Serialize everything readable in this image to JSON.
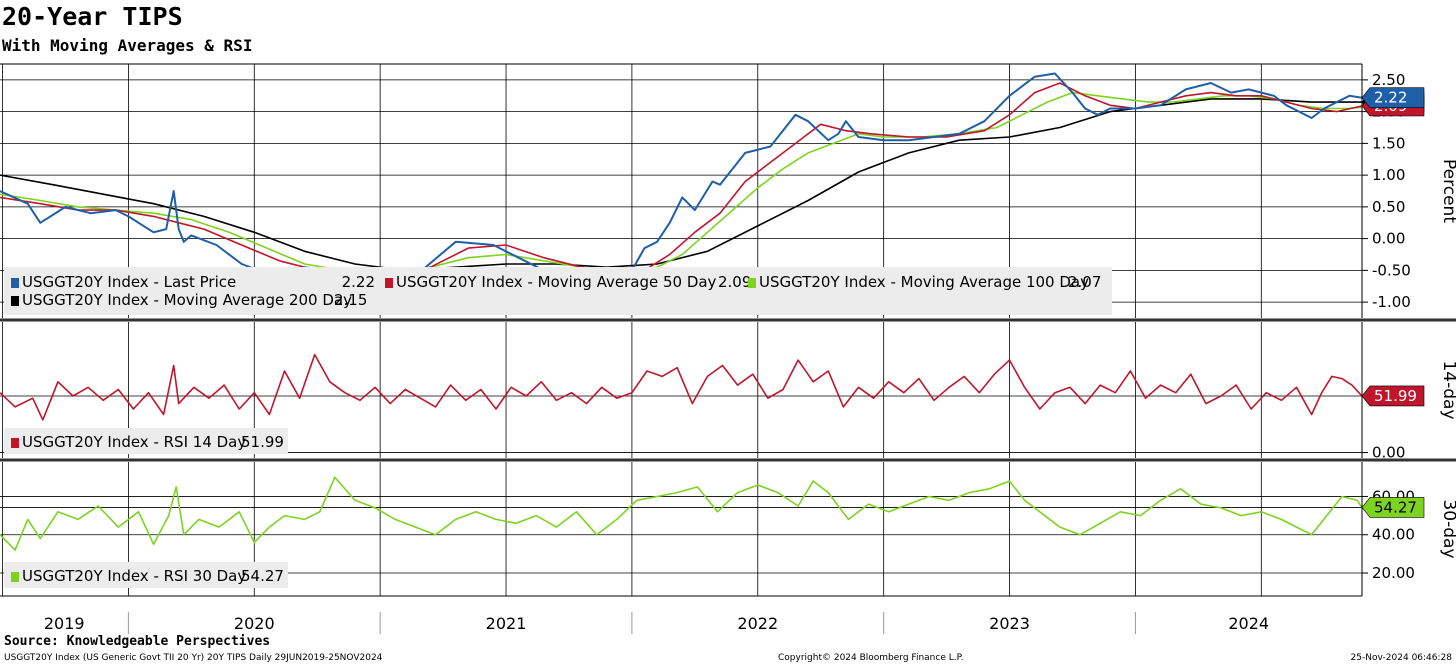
{
  "header": {
    "title": "20-Year TIPS",
    "subtitle": "With Moving Averages & RSI"
  },
  "footer": {
    "source": "Source: Knowledgeable Perspectives",
    "ticker_info": "USGGT20Y Index (US Generic Govt TII 20 Yr) 20Y TIPS  Daily 29JUN2019-25NOV2024",
    "copyright": "Copyright© 2024 Bloomberg Finance L.P.",
    "timestamp": "25-Nov-2024 06:46:28"
  },
  "colors": {
    "price": "#1f5fa8",
    "ma50": "#c0162c",
    "ma100": "#7ed321",
    "ma200": "#000000",
    "rsi14": "#c0162c",
    "rsi30": "#7ed321",
    "grid": "#000000"
  },
  "chart_data": [
    {
      "type": "line",
      "panel": "price",
      "ylabel": "Percent",
      "ylim": [
        -1.25,
        2.75
      ],
      "yticks": [
        "2.50",
        "2.00",
        "1.50",
        "1.00",
        "0.50",
        "0.00",
        "-0.50",
        "-1.00"
      ],
      "ytick_values": [
        2.5,
        2.0,
        1.5,
        1.0,
        0.5,
        0.0,
        -0.5,
        -1.0
      ],
      "x_labels": [
        "2019",
        "2020",
        "2021",
        "2022",
        "2023",
        "2024"
      ],
      "x_range": [
        2019.49,
        2024.9
      ],
      "grid": true,
      "legend_placement": "bottom-left",
      "series": [
        {
          "name": "USGGT20Y Index - Last Price",
          "legend_value": "2.22",
          "last_label": "2.22",
          "x": [
            2019.49,
            2019.6,
            2019.65,
            2019.75,
            2019.85,
            2019.95,
            2020.0,
            2020.1,
            2020.15,
            2020.18,
            2020.2,
            2020.22,
            2020.25,
            2020.35,
            2020.45,
            2020.55,
            2020.65,
            2020.7,
            2020.8,
            2020.9,
            2021.0,
            2021.1,
            2021.15,
            2021.3,
            2021.45,
            2021.55,
            2021.65,
            2021.75,
            2021.85,
            2021.95,
            2022.0,
            2022.05,
            2022.1,
            2022.15,
            2022.2,
            2022.25,
            2022.32,
            2022.35,
            2022.45,
            2022.55,
            2022.65,
            2022.7,
            2022.78,
            2022.82,
            2022.85,
            2022.9,
            2023.0,
            2023.1,
            2023.2,
            2023.3,
            2023.4,
            2023.5,
            2023.6,
            2023.68,
            2023.75,
            2023.8,
            2023.85,
            2023.9,
            2024.0,
            2024.1,
            2024.2,
            2024.3,
            2024.38,
            2024.45,
            2024.55,
            2024.6,
            2024.65,
            2024.7,
            2024.75,
            2024.8,
            2024.85,
            2024.9
          ],
          "values": [
            0.75,
            0.55,
            0.25,
            0.5,
            0.4,
            0.45,
            0.35,
            0.1,
            0.15,
            0.75,
            0.15,
            -0.05,
            0.05,
            -0.1,
            -0.4,
            -0.55,
            -0.6,
            -0.45,
            -0.5,
            -0.55,
            -0.55,
            -0.5,
            -0.55,
            -0.05,
            -0.1,
            -0.3,
            -0.5,
            -0.55,
            -0.6,
            -0.7,
            -0.5,
            -0.15,
            -0.05,
            0.25,
            0.65,
            0.45,
            0.9,
            0.85,
            1.35,
            1.45,
            1.95,
            1.85,
            1.55,
            1.65,
            1.85,
            1.6,
            1.55,
            1.55,
            1.6,
            1.65,
            1.85,
            2.25,
            2.55,
            2.6,
            2.3,
            2.05,
            1.95,
            2.05,
            2.05,
            2.1,
            2.35,
            2.45,
            2.3,
            2.35,
            2.25,
            2.1,
            2.0,
            1.9,
            2.05,
            2.15,
            2.25,
            2.22
          ]
        },
        {
          "name": "USGGT20Y Index - Moving Average 50 Day",
          "legend_value": "2.09",
          "last_label": "2.09",
          "x": [
            2019.49,
            2019.65,
            2019.8,
            2019.95,
            2020.1,
            2020.2,
            2020.3,
            2020.45,
            2020.6,
            2020.75,
            2020.9,
            2021.05,
            2021.2,
            2021.35,
            2021.5,
            2021.65,
            2021.8,
            2021.95,
            2022.05,
            2022.15,
            2022.25,
            2022.35,
            2022.45,
            2022.55,
            2022.65,
            2022.75,
            2022.85,
            2022.95,
            2023.1,
            2023.25,
            2023.4,
            2023.5,
            2023.6,
            2023.7,
            2023.8,
            2023.9,
            2024.0,
            2024.1,
            2024.2,
            2024.3,
            2024.4,
            2024.5,
            2024.6,
            2024.7,
            2024.8,
            2024.9
          ],
          "values": [
            0.65,
            0.55,
            0.45,
            0.45,
            0.35,
            0.25,
            0.15,
            -0.1,
            -0.35,
            -0.5,
            -0.55,
            -0.55,
            -0.45,
            -0.15,
            -0.1,
            -0.3,
            -0.45,
            -0.55,
            -0.5,
            -0.25,
            0.1,
            0.4,
            0.9,
            1.2,
            1.5,
            1.8,
            1.7,
            1.65,
            1.6,
            1.6,
            1.7,
            1.95,
            2.3,
            2.45,
            2.25,
            2.1,
            2.05,
            2.15,
            2.25,
            2.3,
            2.25,
            2.25,
            2.15,
            2.05,
            2.0,
            2.09
          ]
        },
        {
          "name": "USGGT20Y Index - Moving Average 100 Day",
          "legend_value": "2.07",
          "last_label": "2.07",
          "x": [
            2019.49,
            2019.65,
            2019.8,
            2019.95,
            2020.1,
            2020.25,
            2020.4,
            2020.55,
            2020.7,
            2020.85,
            2021.0,
            2021.2,
            2021.35,
            2021.5,
            2021.65,
            2021.8,
            2021.95,
            2022.1,
            2022.2,
            2022.3,
            2022.4,
            2022.5,
            2022.6,
            2022.7,
            2022.8,
            2022.9,
            2023.0,
            2023.15,
            2023.3,
            2023.45,
            2023.55,
            2023.65,
            2023.75,
            2023.85,
            2023.95,
            2024.05,
            2024.15,
            2024.25,
            2024.35,
            2024.45,
            2024.55,
            2024.65,
            2024.75,
            2024.85,
            2024.9
          ],
          "values": [
            0.7,
            0.6,
            0.5,
            0.45,
            0.4,
            0.3,
            0.1,
            -0.15,
            -0.4,
            -0.5,
            -0.55,
            -0.45,
            -0.3,
            -0.25,
            -0.35,
            -0.45,
            -0.55,
            -0.45,
            -0.25,
            0.1,
            0.45,
            0.8,
            1.1,
            1.35,
            1.5,
            1.65,
            1.6,
            1.6,
            1.65,
            1.75,
            1.95,
            2.15,
            2.3,
            2.25,
            2.2,
            2.15,
            2.15,
            2.2,
            2.25,
            2.25,
            2.2,
            2.1,
            2.05,
            2.05,
            2.07
          ]
        },
        {
          "name": "USGGT20Y Index - Moving Average 200 Day",
          "legend_value": "2.15",
          "last_label": "2.15",
          "x": [
            2019.49,
            2019.7,
            2019.9,
            2020.1,
            2020.3,
            2020.5,
            2020.7,
            2020.9,
            2021.1,
            2021.3,
            2021.5,
            2021.7,
            2021.9,
            2022.1,
            2022.3,
            2022.5,
            2022.7,
            2022.9,
            2023.1,
            2023.3,
            2023.5,
            2023.7,
            2023.9,
            2024.1,
            2024.3,
            2024.5,
            2024.7,
            2024.9
          ],
          "values": [
            1.0,
            0.85,
            0.7,
            0.55,
            0.35,
            0.1,
            -0.2,
            -0.4,
            -0.5,
            -0.45,
            -0.4,
            -0.4,
            -0.45,
            -0.4,
            -0.2,
            0.2,
            0.6,
            1.05,
            1.35,
            1.55,
            1.6,
            1.75,
            2.0,
            2.1,
            2.2,
            2.2,
            2.15,
            2.15
          ]
        }
      ]
    },
    {
      "type": "line",
      "panel": "rsi14",
      "ylabel": "14-day",
      "ylim": [
        -5,
        120
      ],
      "yticks": [
        "0.00"
      ],
      "ytick_values": [
        0
      ],
      "hlines": [
        51.99
      ],
      "grid": true,
      "legend_placement": "bottom-left",
      "series": [
        {
          "name": "USGGT20Y Index - RSI 14 Day",
          "legend_value": "51.99",
          "last_label": "51.99",
          "x": [
            2019.49,
            2019.55,
            2019.62,
            2019.66,
            2019.72,
            2019.78,
            2019.84,
            2019.9,
            2019.96,
            2020.02,
            2020.08,
            2020.14,
            2020.18,
            2020.2,
            2020.26,
            2020.32,
            2020.38,
            2020.44,
            2020.5,
            2020.56,
            2020.62,
            2020.68,
            2020.74,
            2020.8,
            2020.86,
            2020.92,
            2020.98,
            2021.04,
            2021.1,
            2021.16,
            2021.22,
            2021.28,
            2021.34,
            2021.4,
            2021.46,
            2021.52,
            2021.58,
            2021.64,
            2021.7,
            2021.76,
            2021.82,
            2021.88,
            2021.94,
            2022.0,
            2022.06,
            2022.12,
            2022.18,
            2022.24,
            2022.3,
            2022.36,
            2022.42,
            2022.48,
            2022.54,
            2022.6,
            2022.66,
            2022.72,
            2022.78,
            2022.84,
            2022.9,
            2022.96,
            2023.02,
            2023.08,
            2023.14,
            2023.2,
            2023.26,
            2023.32,
            2023.38,
            2023.44,
            2023.5,
            2023.56,
            2023.62,
            2023.68,
            2023.74,
            2023.8,
            2023.86,
            2023.92,
            2023.98,
            2024.04,
            2024.1,
            2024.16,
            2024.22,
            2024.28,
            2024.34,
            2024.4,
            2024.46,
            2024.52,
            2024.58,
            2024.64,
            2024.7,
            2024.74,
            2024.78,
            2024.82,
            2024.86,
            2024.9
          ],
          "values": [
            55,
            42,
            50,
            30,
            65,
            52,
            60,
            48,
            58,
            40,
            55,
            35,
            80,
            45,
            60,
            50,
            62,
            40,
            55,
            35,
            75,
            50,
            90,
            65,
            55,
            48,
            60,
            45,
            58,
            50,
            42,
            62,
            48,
            58,
            40,
            60,
            52,
            65,
            48,
            55,
            45,
            60,
            50,
            55,
            75,
            70,
            78,
            45,
            70,
            80,
            62,
            72,
            50,
            58,
            85,
            65,
            75,
            42,
            60,
            50,
            65,
            55,
            68,
            48,
            60,
            70,
            55,
            72,
            85,
            60,
            40,
            55,
            60,
            45,
            62,
            55,
            75,
            50,
            62,
            55,
            72,
            45,
            52,
            62,
            40,
            55,
            48,
            60,
            35,
            55,
            70,
            68,
            62,
            52
          ]
        }
      ]
    },
    {
      "type": "line",
      "panel": "rsi30",
      "ylabel": "30-day",
      "ylim": [
        8,
        78
      ],
      "yticks": [
        "60.00",
        "40.00",
        "20.00"
      ],
      "ytick_values": [
        60,
        40,
        20
      ],
      "hlines": [
        54.27
      ],
      "grid": true,
      "legend_placement": "bottom-left",
      "series": [
        {
          "name": "USGGT20Y Index - RSI 30 Day",
          "legend_value": "54.27",
          "last_label": "54.27",
          "x": [
            2019.49,
            2019.55,
            2019.6,
            2019.65,
            2019.72,
            2019.8,
            2019.88,
            2019.96,
            2020.04,
            2020.1,
            2020.16,
            2020.19,
            2020.22,
            2020.28,
            2020.36,
            2020.44,
            2020.5,
            2020.56,
            2020.62,
            2020.7,
            2020.76,
            2020.82,
            2020.9,
            2020.98,
            2021.06,
            2021.14,
            2021.22,
            2021.3,
            2021.38,
            2021.46,
            2021.54,
            2021.62,
            2021.7,
            2021.78,
            2021.86,
            2021.94,
            2022.02,
            2022.1,
            2022.18,
            2022.26,
            2022.34,
            2022.42,
            2022.5,
            2022.58,
            2022.66,
            2022.72,
            2022.78,
            2022.86,
            2022.94,
            2023.02,
            2023.1,
            2023.18,
            2023.26,
            2023.34,
            2023.42,
            2023.5,
            2023.56,
            2023.62,
            2023.7,
            2023.78,
            2023.86,
            2023.94,
            2024.02,
            2024.1,
            2024.18,
            2024.26,
            2024.34,
            2024.42,
            2024.5,
            2024.58,
            2024.64,
            2024.7,
            2024.76,
            2024.82,
            2024.88,
            2024.9
          ],
          "values": [
            40,
            32,
            48,
            38,
            52,
            48,
            55,
            44,
            52,
            35,
            50,
            65,
            40,
            48,
            44,
            52,
            36,
            44,
            50,
            48,
            52,
            70,
            58,
            54,
            48,
            44,
            40,
            48,
            52,
            48,
            46,
            50,
            44,
            52,
            40,
            48,
            58,
            60,
            62,
            65,
            52,
            62,
            66,
            62,
            55,
            68,
            62,
            48,
            56,
            52,
            56,
            60,
            58,
            62,
            64,
            68,
            58,
            52,
            44,
            40,
            46,
            52,
            50,
            58,
            64,
            56,
            54,
            50,
            52,
            48,
            44,
            40,
            50,
            60,
            58,
            54.27
          ]
        }
      ]
    }
  ]
}
